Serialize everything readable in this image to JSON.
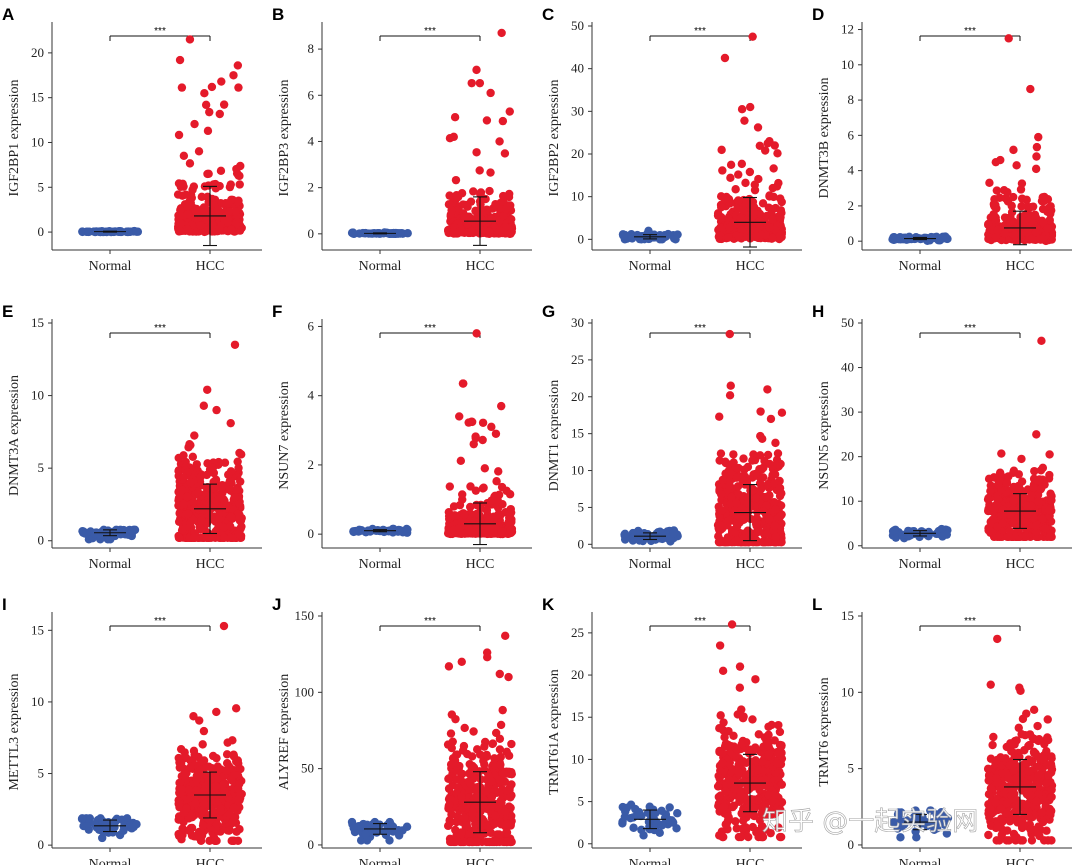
{
  "watermark": "知乎 @一起实验网",
  "colors": {
    "normal": "#3a5ba8",
    "hcc": "#e41a2a",
    "axis": "#333333",
    "errbar": "#111111"
  },
  "chart_data": [
    {
      "letter": "A",
      "type": "scatter",
      "ylabel": "IGF2BP1 expression",
      "categories": [
        "Normal",
        "HCC"
      ],
      "yticks": [
        0,
        5,
        10,
        15,
        20
      ],
      "ylim": [
        -2,
        23
      ],
      "significance": "***",
      "normal": {
        "mean": 0.05,
        "sd": 0.05,
        "min": 0,
        "max": 0.15,
        "n": 50
      },
      "hcc": {
        "mean": 1.8,
        "sd": 3.3,
        "min": 0,
        "max": 21.5,
        "n": 370,
        "outliers": [
          21.5,
          19.2,
          18.6,
          17.5,
          16.8,
          16.2,
          15.5,
          14.2
        ]
      }
    },
    {
      "letter": "B",
      "type": "scatter",
      "ylabel": "IGF2BP3 expression",
      "categories": [
        "Normal",
        "HCC"
      ],
      "yticks": [
        0,
        2,
        4,
        6,
        8
      ],
      "ylim": [
        -0.7,
        9
      ],
      "significance": "***",
      "normal": {
        "mean": 0.02,
        "sd": 0.02,
        "min": 0,
        "max": 0.08,
        "n": 50
      },
      "hcc": {
        "mean": 0.55,
        "sd": 1.05,
        "min": 0,
        "max": 8.7,
        "n": 370,
        "outliers": [
          8.7,
          7.1,
          6.1,
          4.2,
          4.0
        ]
      }
    },
    {
      "letter": "C",
      "type": "scatter",
      "ylabel": "IGF2BP2 expression",
      "categories": [
        "Normal",
        "HCC"
      ],
      "yticks": [
        0,
        10,
        20,
        30,
        40,
        50
      ],
      "ylim": [
        -2.5,
        50
      ],
      "significance": "***",
      "normal": {
        "mean": 0.6,
        "sd": 0.5,
        "min": 0,
        "max": 3.5,
        "n": 50
      },
      "hcc": {
        "mean": 4.0,
        "sd": 5.8,
        "min": 0,
        "max": 47.5,
        "n": 370,
        "outliers": [
          47.5,
          42.5,
          31,
          30.5,
          23,
          22.5
        ]
      }
    },
    {
      "letter": "D",
      "type": "scatter",
      "ylabel": "DNMT3B expression",
      "categories": [
        "Normal",
        "HCC"
      ],
      "yticks": [
        0,
        2,
        4,
        6,
        8,
        10,
        12
      ],
      "ylim": [
        -0.5,
        12.2
      ],
      "significance": "***",
      "normal": {
        "mean": 0.15,
        "sd": 0.06,
        "min": 0,
        "max": 0.35,
        "n": 50
      },
      "hcc": {
        "mean": 0.75,
        "sd": 0.95,
        "min": 0,
        "max": 11.5,
        "n": 370,
        "outliers": [
          11.5,
          5.9,
          4.6,
          4.3,
          4.1
        ]
      }
    },
    {
      "letter": "E",
      "type": "scatter",
      "ylabel": "DNMT3A expression",
      "categories": [
        "Normal",
        "HCC"
      ],
      "yticks": [
        0,
        5,
        10,
        15
      ],
      "ylim": [
        -0.5,
        15
      ],
      "significance": "***",
      "normal": {
        "mean": 0.55,
        "sd": 0.2,
        "min": 0.1,
        "max": 1.0,
        "n": 50
      },
      "hcc": {
        "mean": 2.2,
        "sd": 1.7,
        "min": 0.2,
        "max": 13.5,
        "n": 370,
        "outliers": [
          13.5,
          10.4,
          9.3,
          9.0,
          8.1
        ]
      }
    },
    {
      "letter": "F",
      "type": "scatter",
      "ylabel": "NSUN7 expression",
      "categories": [
        "Normal",
        "HCC"
      ],
      "yticks": [
        0,
        2,
        4,
        6
      ],
      "ylim": [
        -0.4,
        6.1
      ],
      "significance": "***",
      "normal": {
        "mean": 0.1,
        "sd": 0.03,
        "min": 0,
        "max": 0.2,
        "n": 50
      },
      "hcc": {
        "mean": 0.3,
        "sd": 0.6,
        "min": 0,
        "max": 5.8,
        "n": 370,
        "outliers": [
          5.8,
          3.4,
          3.1,
          2.9,
          2.6
        ]
      }
    },
    {
      "letter": "G",
      "type": "scatter",
      "ylabel": "DNMT1 expression",
      "categories": [
        "Normal",
        "HCC"
      ],
      "yticks": [
        0,
        5,
        10,
        15,
        20,
        25,
        30
      ],
      "ylim": [
        -0.5,
        30
      ],
      "significance": "***",
      "normal": {
        "mean": 1.1,
        "sd": 0.45,
        "min": 0.2,
        "max": 2.5,
        "n": 50
      },
      "hcc": {
        "mean": 4.3,
        "sd": 3.8,
        "min": 0.3,
        "max": 28.5,
        "n": 370,
        "outliers": [
          28.5,
          21.5,
          21,
          20.2,
          18,
          17.3,
          17
        ]
      }
    },
    {
      "letter": "H",
      "type": "scatter",
      "ylabel": "NSUN5 expression",
      "categories": [
        "Normal",
        "HCC"
      ],
      "yticks": [
        0,
        10,
        20,
        30,
        40,
        50
      ],
      "ylim": [
        -0.5,
        50
      ],
      "significance": "***",
      "normal": {
        "mean": 2.8,
        "sd": 0.6,
        "min": 1.5,
        "max": 6.5,
        "n": 50
      },
      "hcc": {
        "mean": 7.8,
        "sd": 3.9,
        "min": 2,
        "max": 46,
        "n": 370,
        "outliers": [
          46,
          25,
          20.5,
          19.5
        ]
      }
    },
    {
      "letter": "I",
      "type": "scatter",
      "ylabel": "METTL3 expression",
      "categories": [
        "Normal",
        "HCC"
      ],
      "yticks": [
        0,
        5,
        10,
        15
      ],
      "ylim": [
        -0.2,
        16
      ],
      "significance": "***",
      "normal": {
        "mean": 1.35,
        "sd": 0.4,
        "min": 0.5,
        "max": 2.5,
        "n": 50
      },
      "hcc": {
        "mean": 3.5,
        "sd": 1.6,
        "min": 0.3,
        "max": 15.3,
        "n": 370,
        "outliers": [
          15.3,
          9.3,
          9.0,
          8.7
        ]
      }
    },
    {
      "letter": "J",
      "type": "scatter",
      "ylabel": "ALYREF expression",
      "categories": [
        "Normal",
        "HCC"
      ],
      "yticks": [
        0,
        50,
        100,
        150
      ],
      "ylim": [
        -2,
        150
      ],
      "significance": "***",
      "normal": {
        "mean": 10.5,
        "sd": 3.5,
        "min": 3,
        "max": 20,
        "n": 50
      },
      "hcc": {
        "mean": 28,
        "sd": 20,
        "min": 2,
        "max": 137,
        "n": 370,
        "outliers": [
          137,
          126,
          123,
          120,
          117,
          112,
          110
        ]
      }
    },
    {
      "letter": "K",
      "type": "scatter",
      "ylabel": "TRMT61A expression",
      "categories": [
        "Normal",
        "HCC"
      ],
      "yticks": [
        0,
        5,
        10,
        15,
        20,
        25
      ],
      "ylim": [
        -0.5,
        27
      ],
      "significance": "***",
      "normal": {
        "mean": 2.9,
        "sd": 1.1,
        "min": 1,
        "max": 6.5,
        "n": 50
      },
      "hcc": {
        "mean": 7.2,
        "sd": 3.4,
        "min": 0.8,
        "max": 26,
        "n": 370,
        "outliers": [
          26,
          23.5,
          21,
          20.5,
          18.5
        ]
      }
    },
    {
      "letter": "L",
      "type": "scatter",
      "ylabel": "TRMT6 expression",
      "categories": [
        "Normal",
        "HCC"
      ],
      "yticks": [
        0,
        5,
        10,
        15
      ],
      "ylim": [
        -0.2,
        15
      ],
      "significance": "***",
      "normal": {
        "mean": 1.5,
        "sd": 0.5,
        "min": 0.5,
        "max": 3.0,
        "n": 50
      },
      "hcc": {
        "mean": 3.8,
        "sd": 1.8,
        "min": 0.3,
        "max": 13.5,
        "n": 370,
        "outliers": [
          13.5,
          10.5,
          10.3,
          10.1
        ]
      }
    }
  ]
}
